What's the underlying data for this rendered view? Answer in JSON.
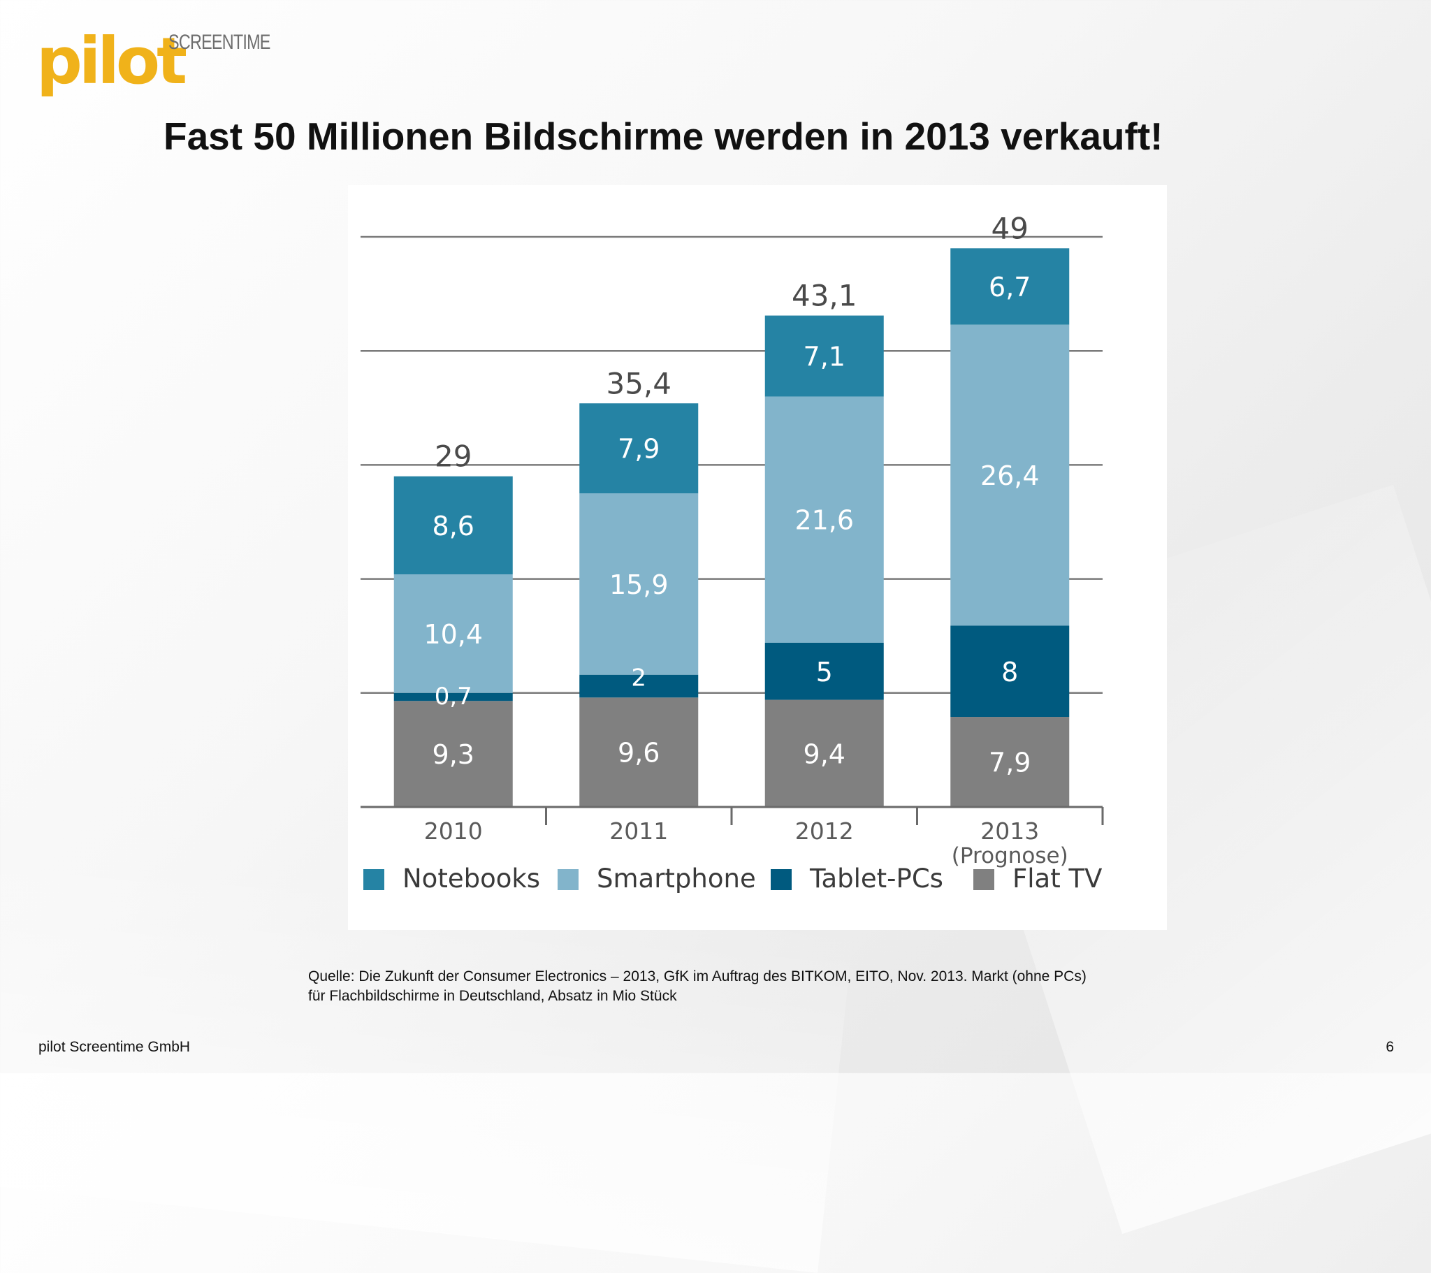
{
  "logo": {
    "main": "pilot",
    "sub": "SCREENTIME"
  },
  "title": "Fast 50 Millionen Bildschirme werden in 2013 verkauft!",
  "source": {
    "line1": "Quelle: Die Zukunft der Consumer Electronics – 2013, GfK im Auftrag des BITKOM, EITO, Nov. 2013. Markt (ohne PCs)",
    "line2": "für Flachbildschirme in Deutschland, Absatz in Mio Stück"
  },
  "footer": {
    "company": "pilot Screentime GmbH",
    "page_number": "6"
  },
  "chart_data": {
    "type": "bar",
    "stacked": true,
    "categories": [
      "2010",
      "2011",
      "2012",
      "2013"
    ],
    "category_sublabels": [
      "",
      "",
      "",
      "(Prognose)"
    ],
    "series": [
      {
        "name": "Flat TV",
        "values": [
          9.3,
          9.6,
          9.4,
          7.9
        ],
        "labels": [
          "9,3",
          "9,6",
          "9,4",
          "7,9"
        ],
        "color": "#808080"
      },
      {
        "name": "Tablet-PCs",
        "values": [
          0.7,
          2,
          5,
          8
        ],
        "labels": [
          "0,7",
          "2",
          "5",
          "8"
        ],
        "color": "#005a7f"
      },
      {
        "name": "Smartphone",
        "values": [
          10.4,
          15.9,
          21.6,
          26.4
        ],
        "labels": [
          "10,4",
          "15,9",
          "21,6",
          "26,4"
        ],
        "color": "#82b4cb"
      },
      {
        "name": "Notebooks",
        "values": [
          8.6,
          7.9,
          7.1,
          6.7
        ],
        "labels": [
          "8,6",
          "7,9",
          "7,1",
          "6,7"
        ],
        "color": "#2583a4"
      }
    ],
    "totals": [
      29,
      35.4,
      43.1,
      49
    ],
    "total_labels": [
      "29",
      "35,4",
      "43,1",
      "49"
    ],
    "legend_order": [
      "Notebooks",
      "Smartphone",
      "Tablet-PCs",
      "Flat TV"
    ],
    "legend_position": "bottom",
    "ylim": [
      0,
      50
    ],
    "gridlines": [
      10,
      20,
      30,
      40,
      50
    ],
    "grid": true,
    "title": "",
    "xlabel": "",
    "ylabel": ""
  }
}
